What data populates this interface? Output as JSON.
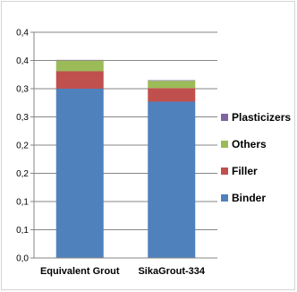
{
  "chart_data": {
    "type": "bar",
    "stacked": true,
    "categories": [
      "Equivalent Grout",
      "SikaGrout-334"
    ],
    "series": [
      {
        "name": "Binder",
        "color": "#4f81bd",
        "values": [
          0.3,
          0.277
        ]
      },
      {
        "name": "Filler",
        "color": "#c0504d",
        "values": [
          0.031,
          0.024
        ]
      },
      {
        "name": "Others",
        "color": "#9bbb59",
        "values": [
          0.019,
          0.013
        ]
      },
      {
        "name": "Plasticizers",
        "color": "#8064a2",
        "values": [
          0.001,
          0.001
        ]
      }
    ],
    "y_ticks": [
      "0,0",
      "0,1",
      "0,1",
      "0,2",
      "0,2",
      "0,3",
      "0,3",
      "0,4",
      "0,4"
    ],
    "ylim": [
      0,
      0.4
    ],
    "grid": true,
    "legend": "right"
  }
}
